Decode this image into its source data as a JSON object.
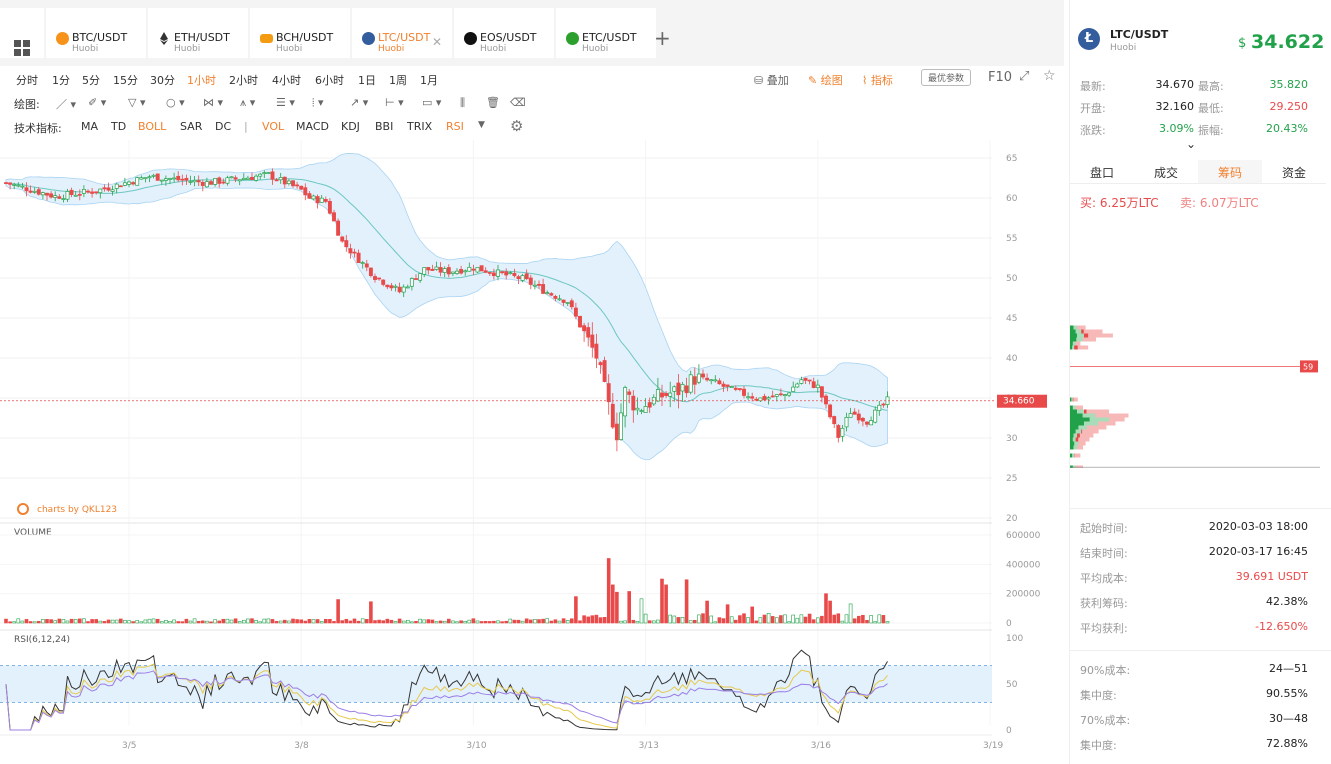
{
  "tabs": [
    {
      "name": "BTC/USDT",
      "sub": "Huobi",
      "color": "#f7931a"
    },
    {
      "name": "ETH/USDT",
      "sub": "Huobi",
      "color": "#333333"
    },
    {
      "name": "BCH/USDT",
      "sub": "Huobi",
      "color": "#f39c12"
    },
    {
      "name": "LTC/USDT",
      "sub": "Huobi",
      "color": "#345d9d"
    },
    {
      "name": "EOS/USDT",
      "sub": "Huobi",
      "color": "#111111"
    },
    {
      "name": "ETC/USDT",
      "sub": "Huobi",
      "color": "#2ca02c"
    }
  ],
  "toolbar": {
    "periods": [
      "分时",
      "1分",
      "5分",
      "15分",
      "30分",
      "1小时",
      "2小时",
      "4小时",
      "6小时",
      "1日",
      "1周",
      "1月"
    ],
    "selected_period": "1小时",
    "right_items": {
      "overlay": "叠加",
      "draw": "绘图",
      "indicator": "指标",
      "best_params": "最优参数",
      "f10": "F10"
    },
    "draw_label": "绘图:",
    "tech_label": "技术指标:",
    "indicators": [
      "MA",
      "TD",
      "BOLL",
      "SAR",
      "DC",
      "|",
      "VOL",
      "MACD",
      "KDJ",
      "BBI",
      "TRIX",
      "RSI"
    ],
    "active_indicators": [
      "BOLL",
      "VOL",
      "RSI"
    ]
  },
  "chart_data": [
    {
      "type": "candlestick",
      "price_axis": [
        65,
        60,
        55,
        50,
        45,
        40,
        35,
        30,
        25,
        20
      ],
      "ylim": [
        20,
        66
      ],
      "current_price": "34.660",
      "x_ticks": [
        "3/5",
        "3/8",
        "3/10",
        "3/13",
        "3/16",
        "3/19"
      ],
      "x_tick_index": [
        30,
        72,
        114,
        156,
        198,
        240
      ],
      "n_candles": 216,
      "watermark": "charts by QKL123",
      "keypoints": [
        [
          0,
          61.9
        ],
        [
          12,
          60.2
        ],
        [
          22,
          60.9
        ],
        [
          35,
          62.7
        ],
        [
          49,
          61.9
        ],
        [
          64,
          62.9
        ],
        [
          72,
          61.0
        ],
        [
          74,
          60.0
        ],
        [
          78,
          59.6
        ],
        [
          82,
          54.5
        ],
        [
          90,
          50.2
        ],
        [
          96,
          48.3
        ],
        [
          102,
          51.1
        ],
        [
          108,
          50.8
        ],
        [
          114,
          51.3
        ],
        [
          126,
          49.9
        ],
        [
          132,
          48.2
        ],
        [
          137,
          47.1
        ],
        [
          141,
          43.1
        ],
        [
          144,
          40.2
        ],
        [
          147,
          33.9
        ],
        [
          149,
          30.6
        ],
        [
          151,
          35.8
        ],
        [
          154,
          33.6
        ],
        [
          160,
          35.3
        ],
        [
          164,
          35.9
        ],
        [
          168,
          37.5
        ],
        [
          172,
          37.1
        ],
        [
          178,
          35.8
        ],
        [
          184,
          34.9
        ],
        [
          190,
          35.4
        ],
        [
          194,
          37.3
        ],
        [
          198,
          36.4
        ],
        [
          203,
          30.2
        ],
        [
          206,
          33.3
        ],
        [
          210,
          32.1
        ],
        [
          215,
          34.7
        ]
      ],
      "volume_axis": [
        600000,
        400000,
        200000,
        0
      ],
      "volume_ylim": [
        0,
        600000
      ],
      "volume_label": "VOLUME",
      "volume_spikes": [
        [
          81,
          160000
        ],
        [
          89,
          145000
        ],
        [
          139,
          180000
        ],
        [
          147,
          440000
        ],
        [
          148,
          260000
        ],
        [
          149,
          210000
        ],
        [
          152,
          215000
        ],
        [
          155,
          165000
        ],
        [
          160,
          300000
        ],
        [
          161,
          260000
        ],
        [
          166,
          295000
        ],
        [
          171,
          150000
        ],
        [
          176,
          125000
        ],
        [
          182,
          110000
        ],
        [
          200,
          200000
        ],
        [
          201,
          150000
        ],
        [
          206,
          130000
        ]
      ],
      "rsi_label": "RSI(6,12,24)",
      "rsi_axis": [
        100,
        50,
        0
      ],
      "rsi_levels": [
        70,
        30
      ],
      "rsi_colors": [
        "#333333",
        "#e6c84b",
        "#9b7fe6"
      ],
      "up_color": "#21a24a",
      "down_color": "#e84a4a",
      "band_color": "#b9dcf5"
    },
    {
      "type": "bar",
      "title": "筹码",
      "marker": "59",
      "levels": [
        [
          56,
          12,
          5
        ],
        [
          55.5,
          25,
          8
        ],
        [
          55,
          33,
          10
        ],
        [
          54.5,
          20,
          9
        ],
        [
          54,
          8,
          4
        ],
        [
          53.5,
          14,
          3
        ],
        [
          47,
          6,
          2
        ],
        [
          46,
          10,
          4
        ],
        [
          45.5,
          30,
          10
        ],
        [
          45,
          45,
          18
        ],
        [
          44.5,
          42,
          28
        ],
        [
          44,
          35,
          20
        ],
        [
          43.5,
          28,
          12
        ],
        [
          43,
          22,
          8
        ],
        [
          42.5,
          18,
          5
        ],
        [
          42,
          15,
          4
        ],
        [
          41.5,
          12,
          6
        ],
        [
          41,
          10,
          5
        ],
        [
          40,
          8,
          3
        ],
        [
          38.5,
          10,
          4
        ],
        [
          38,
          18,
          8
        ],
        [
          37.5,
          45,
          22
        ],
        [
          37,
          88,
          50
        ],
        [
          36.5,
          95,
          65
        ],
        [
          36,
          60,
          0
        ],
        [
          35.5,
          0,
          70
        ],
        [
          35,
          0,
          55
        ],
        [
          34.5,
          0,
          48
        ],
        [
          34,
          0,
          40
        ],
        [
          33.5,
          0,
          28
        ],
        [
          33,
          0,
          20
        ],
        [
          32.5,
          0,
          12
        ],
        [
          32,
          0,
          8
        ],
        [
          31.5,
          0,
          5
        ],
        [
          31,
          0,
          4
        ],
        [
          30.5,
          0,
          3
        ]
      ]
    }
  ],
  "right_panel": {
    "pair": "LTC/USDT",
    "exchange": "Huobi",
    "price_symbol": "$",
    "price": "34.622",
    "stats": [
      {
        "l1": "最新:",
        "v1": "34.670",
        "l2": "最高:",
        "v2": "35.820"
      },
      {
        "l1": "开盘:",
        "v1": "32.160",
        "l2": "最低:",
        "v2": "29.250"
      },
      {
        "l1": "涨跌:",
        "v1": "3.09%",
        "l2": "振幅:",
        "v2": "20.43%"
      }
    ],
    "tabs": [
      "盘口",
      "成交",
      "筹码",
      "资金"
    ],
    "selected_tab": "筹码",
    "buy_label": "买:",
    "buy_val": "6.25万LTC",
    "sell_label": "卖:",
    "sell_val": "6.07万LTC",
    "info": [
      {
        "label": "起始时间:",
        "value": "2020-03-03 18:00"
      },
      {
        "label": "结束时间:",
        "value": "2020-03-17 16:45"
      },
      {
        "label": "平均成本:",
        "value": "39.691 USDT"
      },
      {
        "label": "获利筹码:",
        "value": "42.38%"
      },
      {
        "label": "平均获利:",
        "value": "-12.650%"
      },
      {
        "label": "90%成本:",
        "value": "24—51"
      },
      {
        "label": "集中度:",
        "value": "90.55%"
      },
      {
        "label": "70%成本:",
        "value": "30—48"
      },
      {
        "label": "集中度:",
        "value": "72.88%"
      }
    ]
  }
}
